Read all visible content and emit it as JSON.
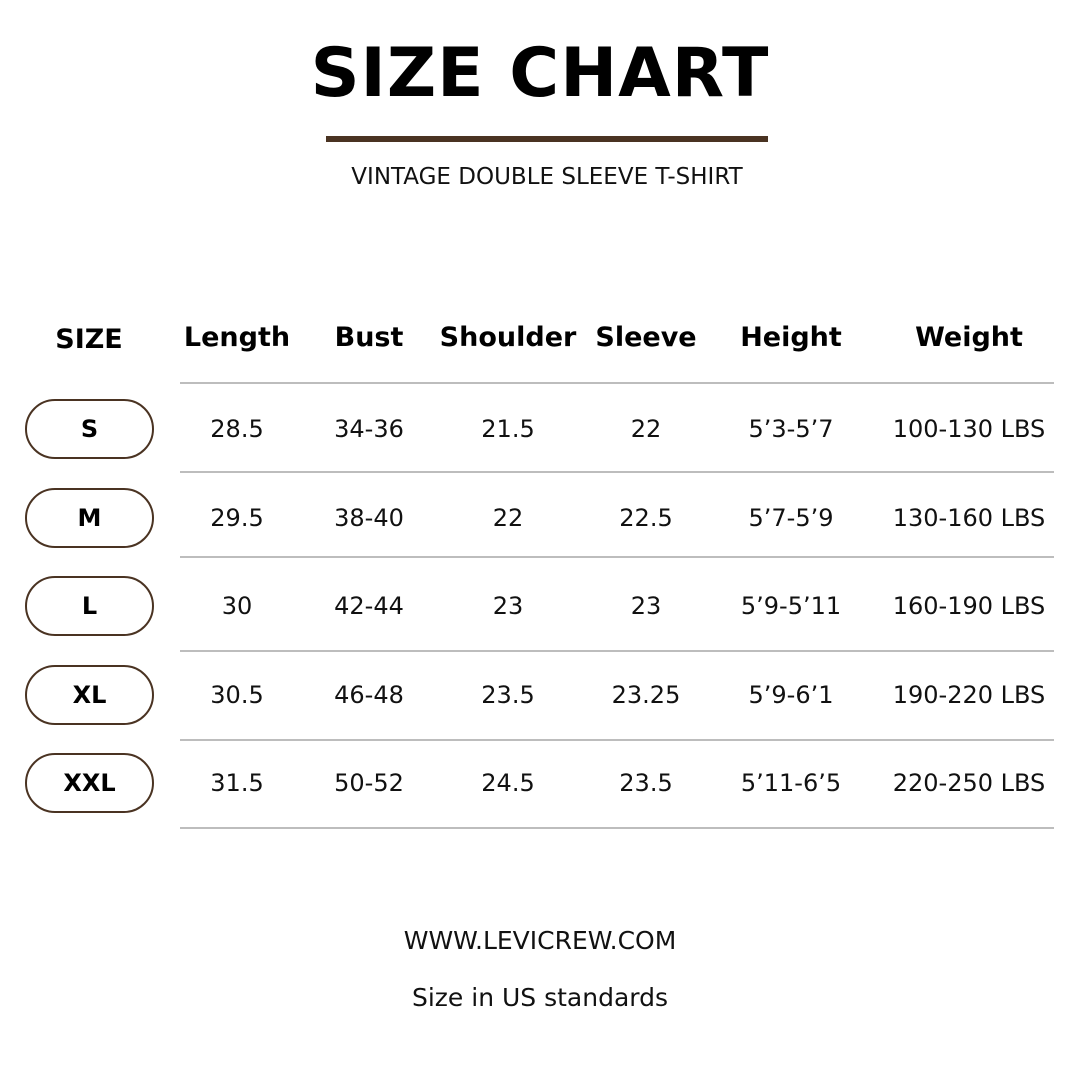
{
  "title": "SIZE CHART",
  "subtitle": "VINTAGE DOUBLE SLEEVE T-SHIRT",
  "accent_color": "#4a3322",
  "table": {
    "headers": [
      "SIZE",
      "Length",
      "Bust",
      "Shoulder",
      "Sleeve",
      "Height",
      "Weight"
    ],
    "rows": [
      [
        "S",
        "28.5",
        "34-36",
        "21.5",
        "22",
        "5’3-5’7",
        "100-130 LBS"
      ],
      [
        "M",
        "29.5",
        "38-40",
        "22",
        "22.5",
        "5’7-5’9",
        "130-160 LBS"
      ],
      [
        "L",
        "30",
        "42-44",
        "23",
        "23",
        "5’9-5’11",
        "160-190 LBS"
      ],
      [
        "XL",
        "30.5",
        "46-48",
        "23.5",
        "23.25",
        "5’9-6’1",
        "190-220 LBS"
      ],
      [
        "XXL",
        "31.5",
        "50-52",
        "24.5",
        "23.5",
        "5’11-6’5",
        "220-250 LBS"
      ]
    ]
  },
  "footer": {
    "website": "WWW.LEVICREW.COM",
    "note": "Size in US standards"
  }
}
